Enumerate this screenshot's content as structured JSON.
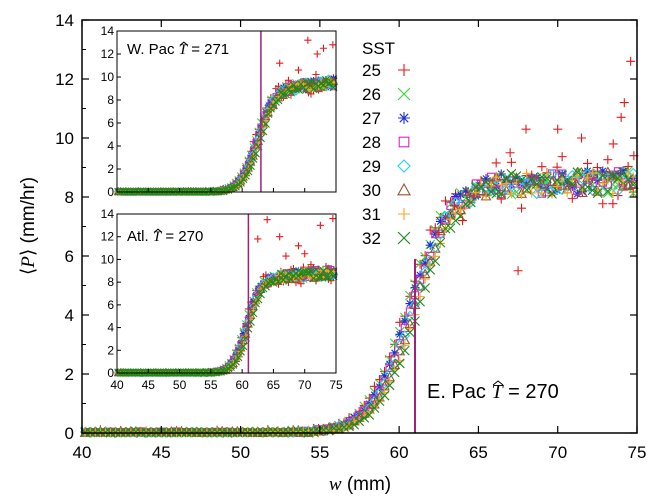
{
  "chart_data": {
    "type": "scatter",
    "main": {
      "xlabel_var": "w",
      "xlabel_unit": "(mm)",
      "ylabel_var": "P",
      "ylabel_unit": "(mm/hr)",
      "xlim": [
        40,
        75
      ],
      "ylim": [
        0,
        14
      ],
      "xticks": [
        "40",
        "45",
        "50",
        "55",
        "60",
        "65",
        "70",
        "75"
      ],
      "yticks": [
        "0",
        "2",
        "4",
        "6",
        "8",
        "10",
        "12",
        "14"
      ],
      "annotation": {
        "text": "E. Pac",
        "symbol": "T",
        "value": "= 270"
      },
      "critical_w": 61
    },
    "inset_wpac": {
      "label": "W. Pac",
      "symbol": "T",
      "value": "= 271",
      "xlim": [
        40,
        75
      ],
      "ylim": [
        0,
        14
      ],
      "yticks": [
        "0",
        "2",
        "4",
        "6",
        "8",
        "10",
        "12",
        "14"
      ],
      "critical_w": 63
    },
    "inset_atl": {
      "label": "Atl.",
      "symbol": "T",
      "value": "= 270",
      "xlim": [
        40,
        75
      ],
      "ylim": [
        0,
        14
      ],
      "xticks": [
        "40",
        "45",
        "50",
        "55",
        "60",
        "65",
        "70",
        "75"
      ],
      "yticks": [
        "0",
        "2",
        "4",
        "6",
        "8",
        "10",
        "12",
        "14"
      ],
      "critical_w": 61
    },
    "legend_title": "SST",
    "series": [
      {
        "name": "25",
        "color": "#e8191c",
        "marker": "plus"
      },
      {
        "name": "26",
        "color": "#3ad43a",
        "marker": "x"
      },
      {
        "name": "27",
        "color": "#1f2fd6",
        "marker": "asterisk"
      },
      {
        "name": "28",
        "color": "#d126d1",
        "marker": "square"
      },
      {
        "name": "29",
        "color": "#1ed2e6",
        "marker": "diamond"
      },
      {
        "name": "30",
        "color": "#a0522d",
        "marker": "triangle"
      },
      {
        "name": "31",
        "color": "#f5a623",
        "marker": "plus"
      },
      {
        "name": "32",
        "color": "#1a8a1a",
        "marker": "x"
      }
    ],
    "curves": {
      "main": {
        "w0": 60.8,
        "k": 0.8,
        "pmax": 8.5,
        "drift": 0.0,
        "outliers": [
          [
            62.5,
            6.8
          ],
          [
            63.5,
            7.7
          ],
          [
            64.0,
            7.2
          ],
          [
            67.0,
            9.5
          ],
          [
            68.0,
            10.3
          ],
          [
            70.0,
            10.3
          ],
          [
            71.5,
            10.0
          ],
          [
            72.5,
            9.0
          ],
          [
            73.5,
            9.8
          ],
          [
            74.0,
            10.7
          ],
          [
            74.6,
            12.6
          ],
          [
            67.5,
            5.5
          ],
          [
            74.2,
            11.2
          ],
          [
            74.8,
            9.4
          ]
        ]
      },
      "wpac": {
        "w0": 62.4,
        "k": 0.75,
        "pmax": 8.9,
        "drift": 0.05,
        "outliers": [
          [
            70.5,
            13.2
          ],
          [
            73.0,
            12.5
          ],
          [
            74.5,
            12.8
          ],
          [
            72.0,
            12.0
          ],
          [
            66.0,
            11.2
          ],
          [
            69.0,
            10.6
          ]
        ]
      },
      "atl": {
        "w0": 60.8,
        "k": 0.9,
        "pmax": 8.4,
        "drift": 0.03,
        "outliers": [
          [
            64.0,
            13.5
          ],
          [
            62.5,
            11.8
          ],
          [
            66.0,
            12.0
          ],
          [
            69.0,
            11.2
          ],
          [
            72.5,
            13.0
          ],
          [
            74.5,
            13.6
          ],
          [
            70.0,
            10.5
          ],
          [
            67.0,
            10.3
          ]
        ]
      }
    }
  }
}
